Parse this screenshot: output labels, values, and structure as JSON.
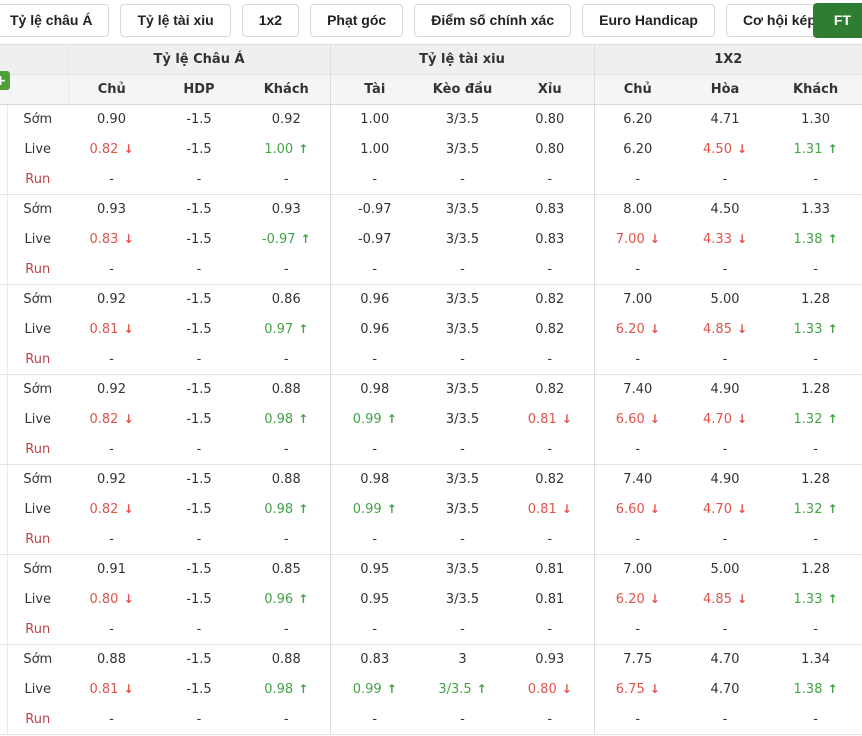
{
  "tab_bar": {
    "tabs": [
      "Tỷ lệ châu Á",
      "Tỷ lệ tài xiu",
      "1x2",
      "Phạt góc",
      "Điểm số chính xác",
      "Euro Handicap",
      "Cơ hội kép"
    ],
    "ft_label": "FT"
  },
  "icons": {
    "add_icon_glyph": "+",
    "trend_up_glyph": "↑",
    "trend_down_glyph": "↓"
  },
  "colors": {
    "up_green": "#44a248",
    "down_red": "#e0524a",
    "run_label_red": "#bf4246",
    "ft_button_green": "#2e7d32",
    "add_button_green": "#4f9e3c"
  },
  "table": {
    "column_groups": [
      {
        "label": "Tỷ lệ Châu Á",
        "columns": [
          "Chủ",
          "HDP",
          "Khách"
        ]
      },
      {
        "label": "Tỷ lệ tài xiu",
        "columns": [
          "Tài",
          "Kèo đầu",
          "Xỉu"
        ]
      },
      {
        "label": "1X2",
        "columns": [
          "Chủ",
          "Hòa",
          "Khách"
        ]
      }
    ],
    "row_labels": {
      "som": "Sớm",
      "live": "Live",
      "run": "Run"
    },
    "legend": "cells are strings; suffix |d = dropped (red, down arrow), |u = risen (green, up arrow)",
    "groups": [
      {
        "som": [
          "0.90",
          "-1.5",
          "0.92",
          "1.00",
          "3/3.5",
          "0.80",
          "6.20",
          "4.71",
          "1.30"
        ],
        "live": [
          "0.82|d",
          "-1.5",
          "1.00|u",
          "1.00",
          "3/3.5",
          "0.80",
          "6.20",
          "4.50|d",
          "1.31|u"
        ],
        "run": [
          "-",
          "-",
          "-",
          "-",
          "-",
          "-",
          "-",
          "-",
          "-"
        ]
      },
      {
        "som": [
          "0.93",
          "-1.5",
          "0.93",
          "-0.97",
          "3/3.5",
          "0.83",
          "8.00",
          "4.50",
          "1.33"
        ],
        "live": [
          "0.83|d",
          "-1.5",
          "-0.97|u",
          "-0.97",
          "3/3.5",
          "0.83",
          "7.00|d",
          "4.33|d",
          "1.38|u"
        ],
        "run": [
          "-",
          "-",
          "-",
          "-",
          "-",
          "-",
          "-",
          "-",
          "-"
        ]
      },
      {
        "som": [
          "0.92",
          "-1.5",
          "0.86",
          "0.96",
          "3/3.5",
          "0.82",
          "7.00",
          "5.00",
          "1.28"
        ],
        "live": [
          "0.81|d",
          "-1.5",
          "0.97|u",
          "0.96",
          "3/3.5",
          "0.82",
          "6.20|d",
          "4.85|d",
          "1.33|u"
        ],
        "run": [
          "-",
          "-",
          "-",
          "-",
          "-",
          "-",
          "-",
          "-",
          "-"
        ]
      },
      {
        "som": [
          "0.92",
          "-1.5",
          "0.88",
          "0.98",
          "3/3.5",
          "0.82",
          "7.40",
          "4.90",
          "1.28"
        ],
        "live": [
          "0.82|d",
          "-1.5",
          "0.98|u",
          "0.99|u",
          "3/3.5",
          "0.81|d",
          "6.60|d",
          "4.70|d",
          "1.32|u"
        ],
        "run": [
          "-",
          "-",
          "-",
          "-",
          "-",
          "-",
          "-",
          "-",
          "-"
        ]
      },
      {
        "som": [
          "0.92",
          "-1.5",
          "0.88",
          "0.98",
          "3/3.5",
          "0.82",
          "7.40",
          "4.90",
          "1.28"
        ],
        "live": [
          "0.82|d",
          "-1.5",
          "0.98|u",
          "0.99|u",
          "3/3.5",
          "0.81|d",
          "6.60|d",
          "4.70|d",
          "1.32|u"
        ],
        "run": [
          "-",
          "-",
          "-",
          "-",
          "-",
          "-",
          "-",
          "-",
          "-"
        ]
      },
      {
        "som": [
          "0.91",
          "-1.5",
          "0.85",
          "0.95",
          "3/3.5",
          "0.81",
          "7.00",
          "5.00",
          "1.28"
        ],
        "live": [
          "0.80|d",
          "-1.5",
          "0.96|u",
          "0.95",
          "3/3.5",
          "0.81",
          "6.20|d",
          "4.85|d",
          "1.33|u"
        ],
        "run": [
          "-",
          "-",
          "-",
          "-",
          "-",
          "-",
          "-",
          "-",
          "-"
        ]
      },
      {
        "som": [
          "0.88",
          "-1.5",
          "0.88",
          "0.83",
          "3",
          "0.93",
          "7.75",
          "4.70",
          "1.34"
        ],
        "live": [
          "0.81|d",
          "-1.5",
          "0.98|u",
          "0.99|u",
          "3/3.5|u",
          "0.80|d",
          "6.75|d",
          "4.70",
          "1.38|u"
        ],
        "run": [
          "-",
          "-",
          "-",
          "-",
          "-",
          "-",
          "-",
          "-",
          "-"
        ]
      }
    ]
  }
}
